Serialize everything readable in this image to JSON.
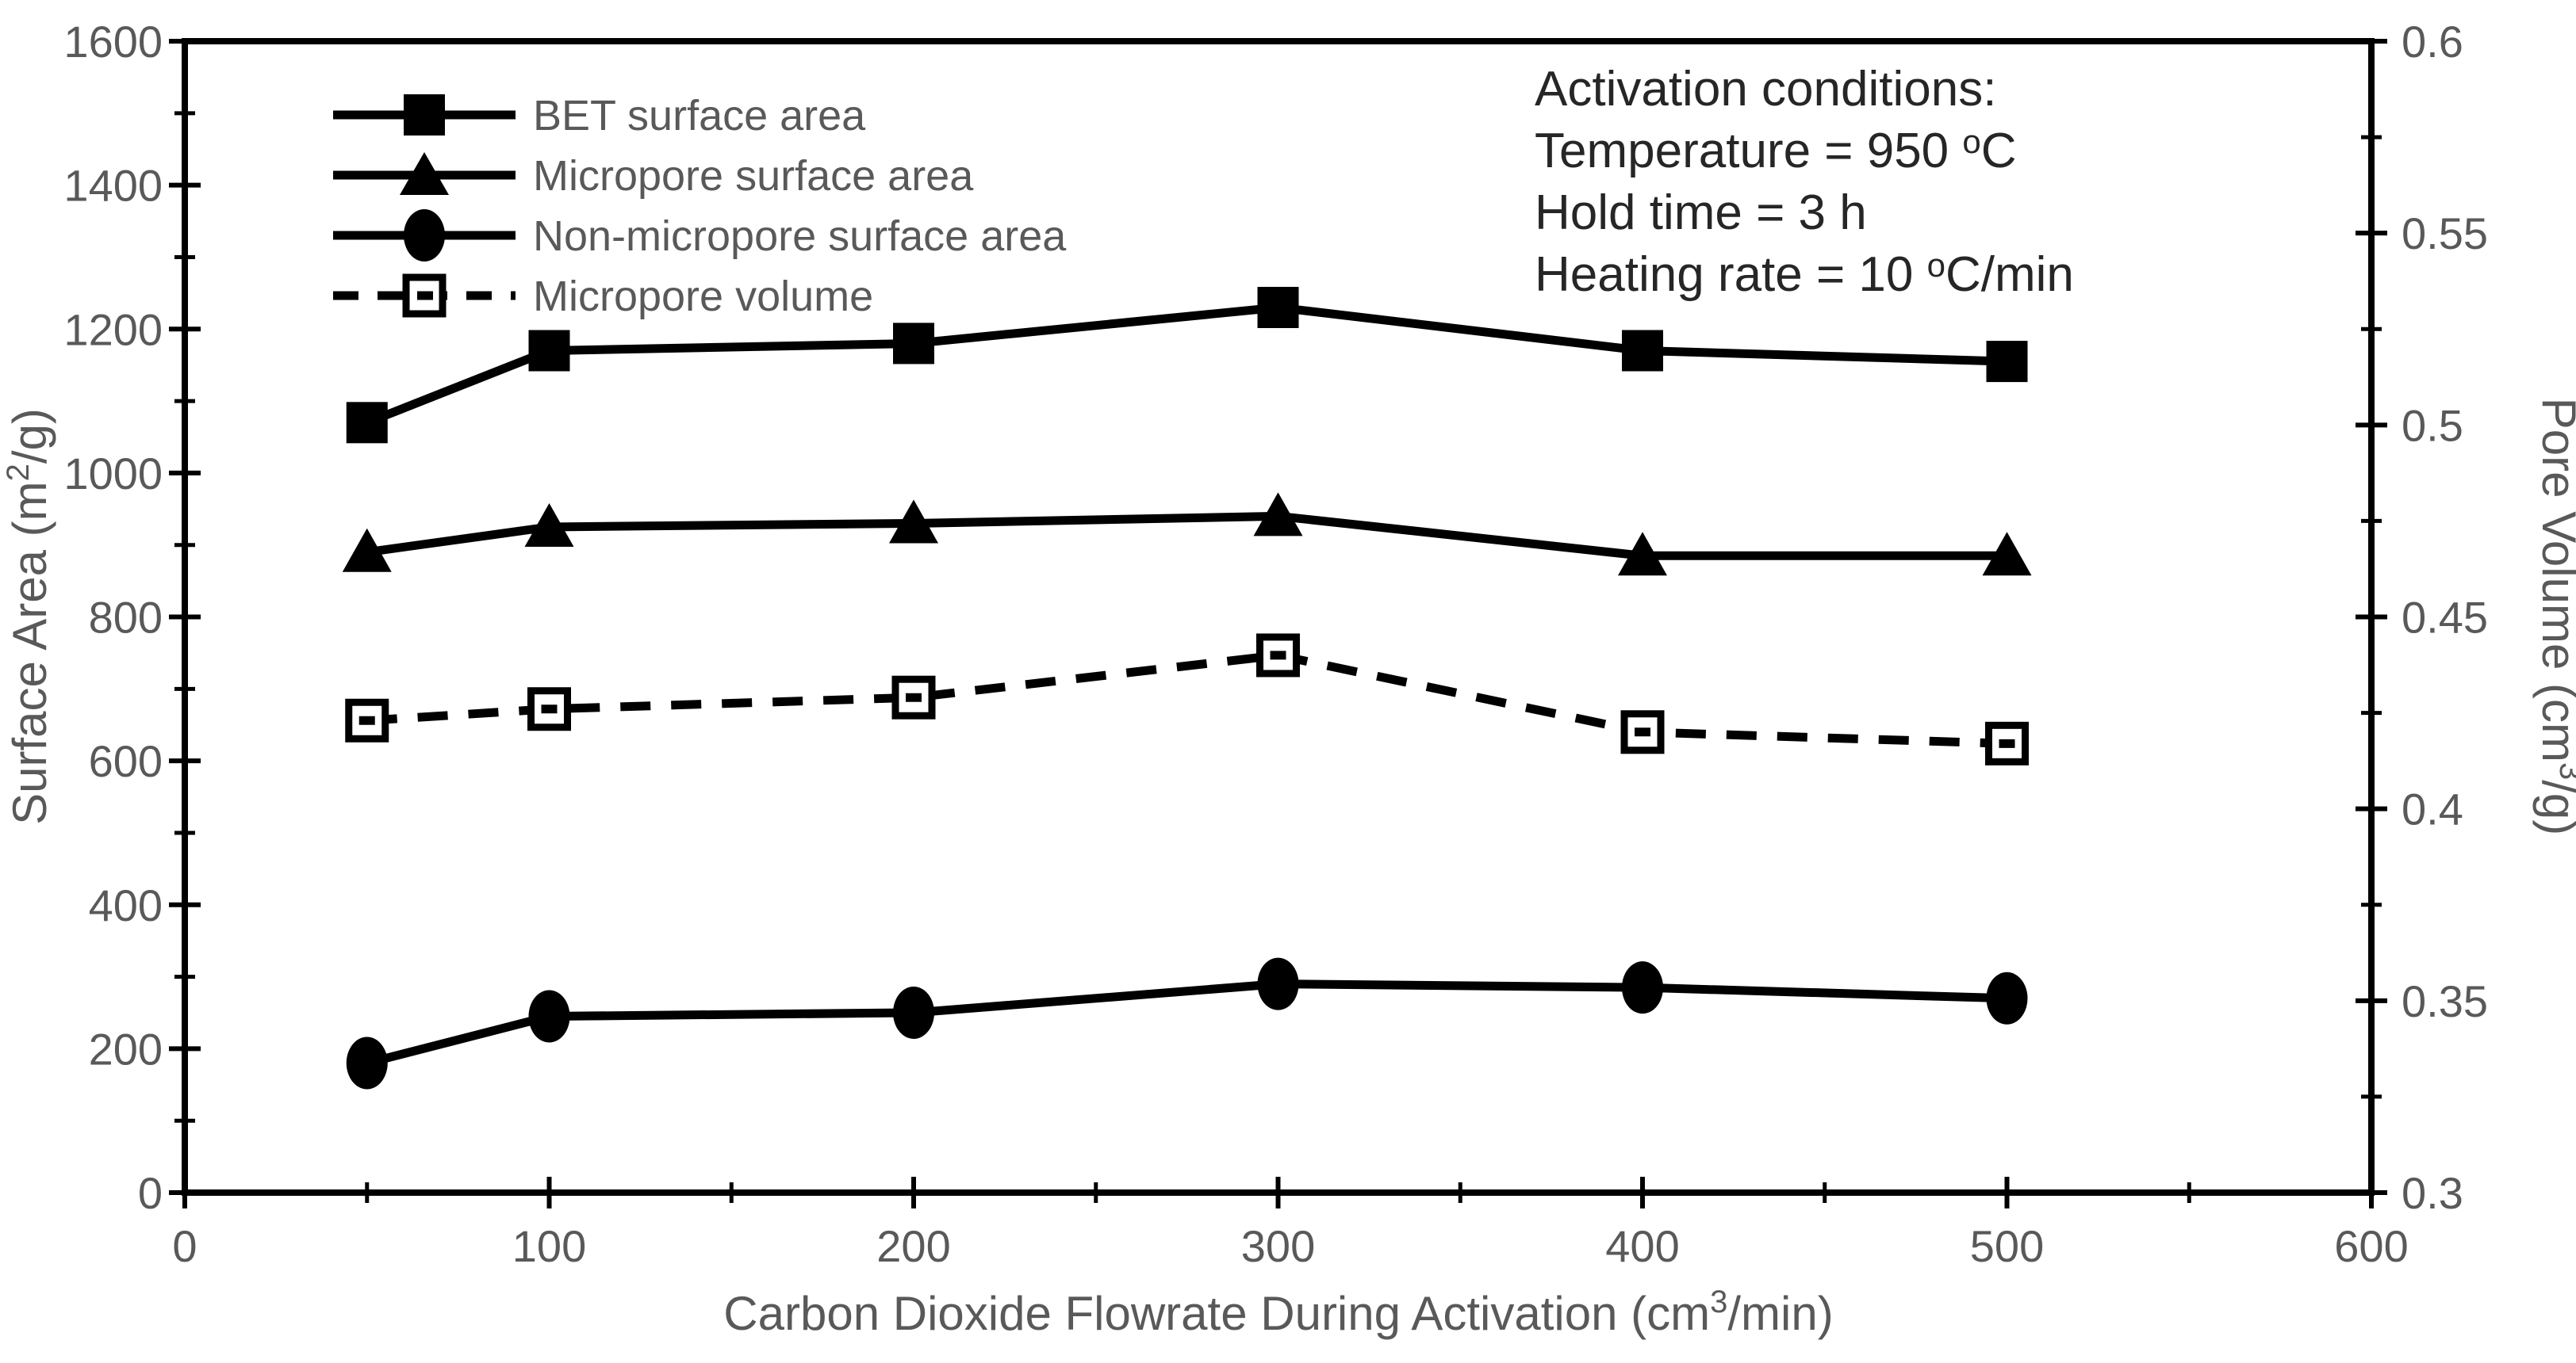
{
  "chart_data": {
    "type": "line",
    "title": "",
    "x": [
      50,
      100,
      200,
      300,
      400,
      500
    ],
    "series": [
      {
        "name": "BET surface area",
        "axis": "left",
        "marker": "filled-square",
        "line": "solid",
        "values": [
          1070,
          1170,
          1180,
          1230,
          1170,
          1155
        ]
      },
      {
        "name": "Micropore surface area",
        "axis": "left",
        "marker": "filled-triangle",
        "line": "solid",
        "values": [
          890,
          925,
          930,
          940,
          885,
          885
        ]
      },
      {
        "name": "Non-micropore surface area",
        "axis": "left",
        "marker": "filled-circle",
        "line": "solid",
        "values": [
          180,
          245,
          250,
          290,
          285,
          270
        ]
      },
      {
        "name": "Micropore volume",
        "axis": "right",
        "marker": "open-square",
        "line": "dashed",
        "values": [
          0.423,
          0.426,
          0.429,
          0.44,
          0.42,
          0.417
        ]
      }
    ],
    "x_axis": {
      "title_pre": "Carbon Dioxide Flowrate During Activation (cm",
      "title_sup": "3",
      "title_post": "/min)",
      "min": 0,
      "max": 600,
      "major_ticks": [
        0,
        100,
        200,
        300,
        400,
        500,
        600
      ],
      "tick_labels": [
        "0",
        "100",
        "200",
        "300",
        "400",
        "500",
        "600"
      ],
      "minor_step": 50
    },
    "y_left": {
      "title_pre": "Surface Area (m",
      "title_sup": "2",
      "title_post": "/g)",
      "min": 0,
      "max": 1600,
      "major_ticks": [
        0,
        200,
        400,
        600,
        800,
        1000,
        1200,
        1400,
        1600
      ],
      "tick_labels": [
        "0",
        "200",
        "400",
        "600",
        "800",
        "1000",
        "1200",
        "1400",
        "1600"
      ],
      "minor_step": 100
    },
    "y_right": {
      "title_pre": "Pore Volume (cm",
      "title_sup": "3",
      "title_post": "/g)",
      "min": 0.3,
      "max": 0.6,
      "major_ticks": [
        0.3,
        0.35,
        0.4,
        0.45,
        0.5,
        0.55,
        0.6
      ],
      "tick_labels": [
        "0.3",
        "0.35",
        "0.4",
        "0.45",
        "0.5",
        "0.55",
        "0.6"
      ],
      "minor_step": 0.025
    },
    "legend_position": "top-left-inside",
    "grid": false
  },
  "annotation": {
    "line1": "Activation conditions:",
    "line2_pre": "Temperature = 950 ",
    "line2_sup": "o",
    "line2_post": "C",
    "line3": "Hold time = 3 h",
    "line4_pre": "Heating rate = 10 ",
    "line4_sup": "o",
    "line4_post": "C/min"
  },
  "colors": {
    "series": "#000000",
    "tick_label": "#595959",
    "axis_title": "#595959",
    "legend_label": "#595959",
    "annotation": "#262626",
    "frame": "#000000",
    "background": "#ffffff"
  }
}
